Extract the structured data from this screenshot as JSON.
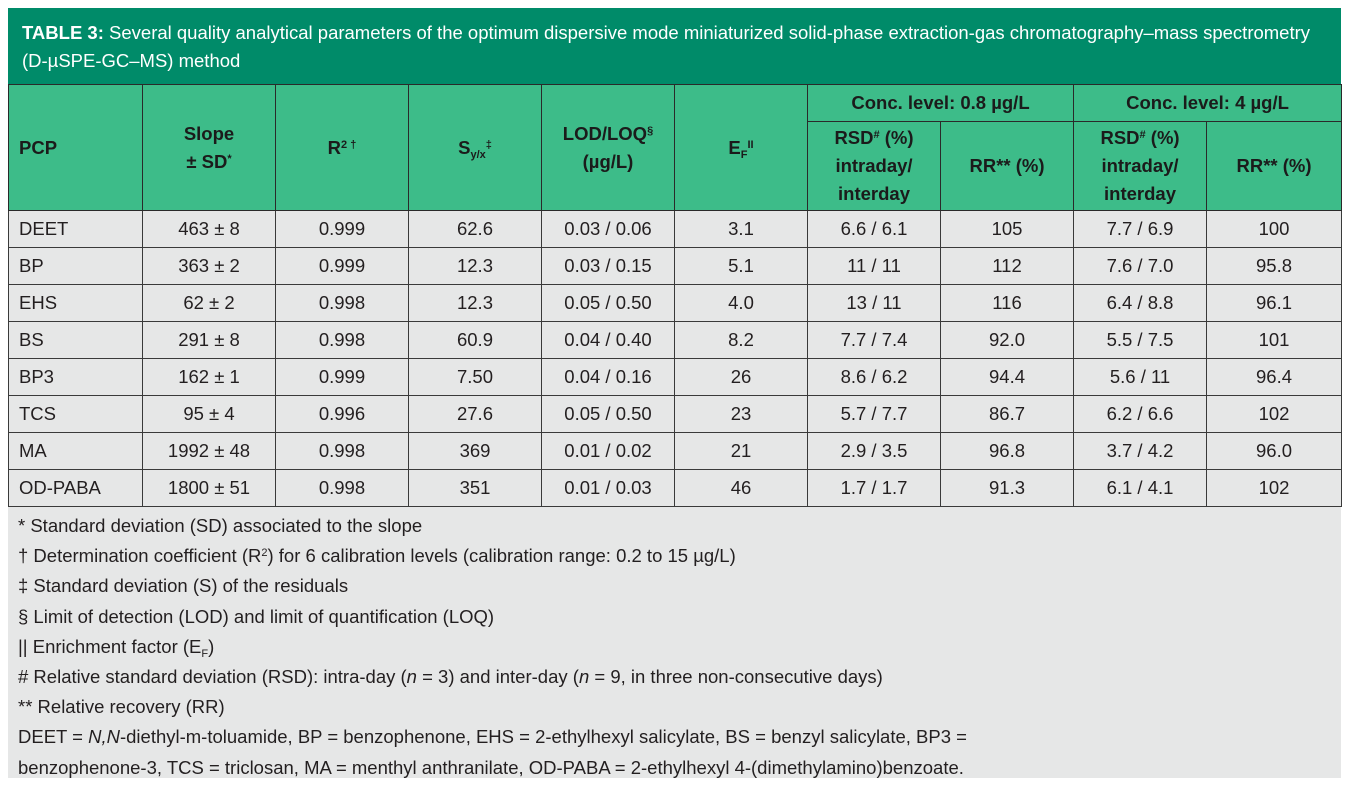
{
  "caption": {
    "label": "TABLE 3:",
    "text": " Several quality analytical parameters of the optimum dispersive mode miniaturized solid-phase extraction-gas chromatography–mass spectrometry (D-µSPE-GC–MS) method"
  },
  "header": {
    "pcp": "PCP",
    "slope_line1": "Slope",
    "slope_line2": "± SD",
    "slope_mark": "*",
    "r2": "R",
    "r2_sup": "2",
    "r2_mark": " †",
    "syx": "S",
    "syx_sub": "y/x",
    "syx_mark": "‡",
    "lodloq_line1": "LOD/LOQ",
    "lodloq_mark": "§",
    "lodloq_line2": "(µg/L)",
    "ef": "E",
    "ef_sub": "F",
    "ef_mark": "II",
    "group1": "Conc. level: 0.8 µg/L",
    "group2": "Conc. level: 4 µg/L",
    "rsd_a": "RSD",
    "rsd_mark": "#",
    "rsd_b": " (%)",
    "rsd_line2": "intraday/",
    "rsd_line3": "interday",
    "rr": "RR** (%)"
  },
  "rows": [
    {
      "pcp": "DEET",
      "slope": "463 ± 8",
      "r2": "0.999",
      "syx": "62.6",
      "lodloq": "0.03 / 0.06",
      "ef": "3.1",
      "rsd1": "6.6 / 6.1",
      "rr1": "105",
      "rsd2": "7.7 / 6.9",
      "rr2": "100"
    },
    {
      "pcp": "BP",
      "slope": "363 ± 2",
      "r2": "0.999",
      "syx": "12.3",
      "lodloq": "0.03 / 0.15",
      "ef": "5.1",
      "rsd1": "11 / 11",
      "rr1": "112",
      "rsd2": "7.6 / 7.0",
      "rr2": "95.8"
    },
    {
      "pcp": "EHS",
      "slope": "62 ± 2",
      "r2": "0.998",
      "syx": "12.3",
      "lodloq": "0.05 / 0.50",
      "ef": "4.0",
      "rsd1": "13 / 11",
      "rr1": "116",
      "rsd2": "6.4 / 8.8",
      "rr2": "96.1"
    },
    {
      "pcp": "BS",
      "slope": "291 ± 8",
      "r2": "0.998",
      "syx": "60.9",
      "lodloq": "0.04 / 0.40",
      "ef": "8.2",
      "rsd1": "7.7 / 7.4",
      "rr1": "92.0",
      "rsd2": "5.5 / 7.5",
      "rr2": "101"
    },
    {
      "pcp": "BP3",
      "slope": "162 ± 1",
      "r2": "0.999",
      "syx": "7.50",
      "lodloq": "0.04 / 0.16",
      "ef": "26",
      "rsd1": "8.6 / 6.2",
      "rr1": "94.4",
      "rsd2": "5.6 / 11",
      "rr2": "96.4"
    },
    {
      "pcp": "TCS",
      "slope": "95 ± 4",
      "r2": "0.996",
      "syx": "27.6",
      "lodloq": "0.05 / 0.50",
      "ef": "23",
      "rsd1": "5.7 / 7.7",
      "rr1": "86.7",
      "rsd2": "6.2 / 6.6",
      "rr2": "102"
    },
    {
      "pcp": "MA",
      "slope": "1992 ± 48",
      "r2": "0.998",
      "syx": "369",
      "lodloq": "0.01 / 0.02",
      "ef": "21",
      "rsd1": "2.9 / 3.5",
      "rr1": "96.8",
      "rsd2": "3.7 / 4.2",
      "rr2": "96.0"
    },
    {
      "pcp": "OD-PABA",
      "slope": "1800 ± 51",
      "r2": "0.998",
      "syx": "351",
      "lodloq": "0.01 / 0.03",
      "ef": "46",
      "rsd1": "1.7 / 1.7",
      "rr1": "91.3",
      "rsd2": "6.1 / 4.1",
      "rr2": "102"
    }
  ],
  "notes": {
    "n1": "* Standard deviation (SD) associated to the slope",
    "n2a": "† Determination coefficient (R",
    "n2sup": "2",
    "n2b": ") for 6 calibration levels (calibration range: 0.2 to 15 µg/L)",
    "n3": "‡ Standard deviation (S) of the residuals",
    "n4": "§ Limit of detection (LOD) and limit of quantification (LOQ)",
    "n5a": "|| Enrichment factor (E",
    "n5sub": "F",
    "n5b": ")",
    "n6a": "# Relative standard deviation (RSD): intra-day (",
    "n6n1": "n",
    "n6b": " = 3) and inter-day (",
    "n6n2": "n",
    "n6c": " = 9, in three non-consecutive days)",
    "n7": "** Relative recovery (RR)",
    "n8a": "DEET = ",
    "n8it": "N,N",
    "n8b": "-diethyl-m-toluamide, BP = benzophenone, EHS = 2-ethylhexyl salicylate, BS = benzyl salicylate, BP3 =",
    "n9": "benzophenone-3, TCS = triclosan, MA = menthyl anthranilate, OD-PABA = 2-ethylhexyl 4-(dimethylamino)benzoate."
  }
}
